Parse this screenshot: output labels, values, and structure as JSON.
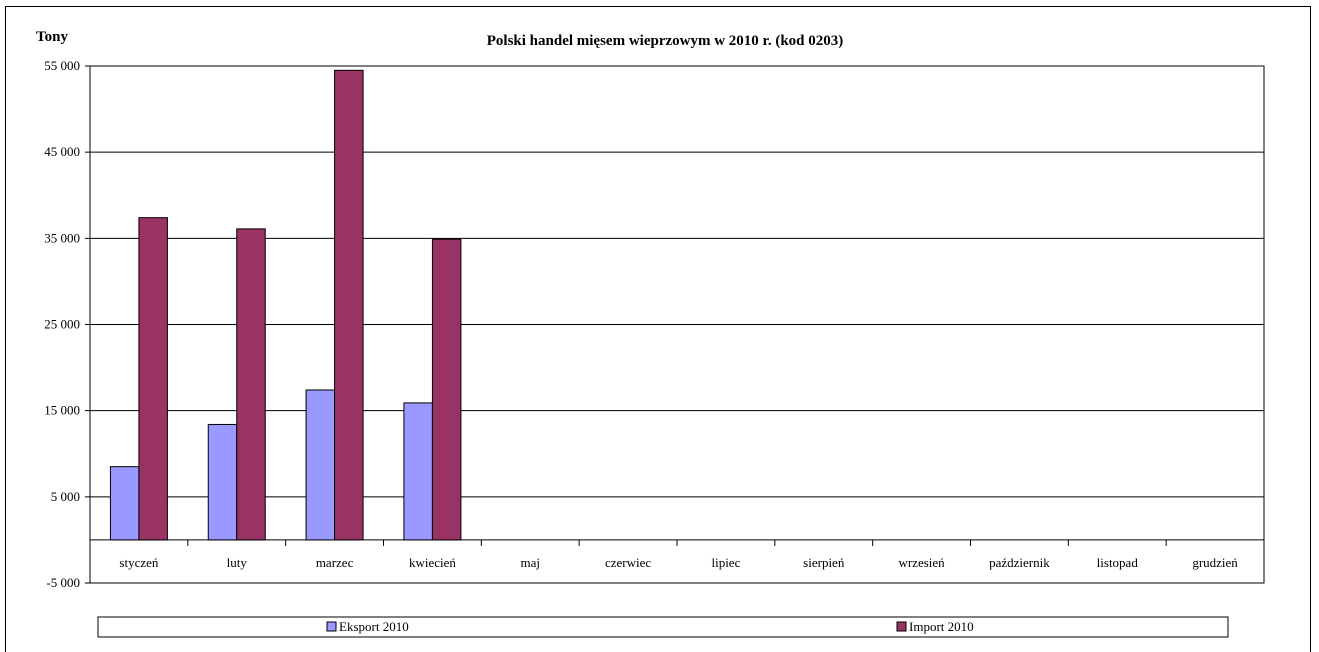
{
  "chart_data": {
    "type": "bar",
    "title": "Polski handel mięsem wieprzowym w 2010 r. (kod 0203)",
    "ylabel": "Tony",
    "xlabel": "",
    "categories": [
      "styczeń",
      "luty",
      "marzec",
      "kwiecień",
      "maj",
      "czerwiec",
      "lipiec",
      "sierpień",
      "wrzesień",
      "październik",
      "listopad",
      "grudzień"
    ],
    "series": [
      {
        "name": "Eksport 2010",
        "color": "#9999ff",
        "values": [
          8500,
          13400,
          17400,
          15900,
          null,
          null,
          null,
          null,
          null,
          null,
          null,
          null
        ]
      },
      {
        "name": "Import 2010",
        "color": "#993366",
        "values": [
          37400,
          36100,
          54500,
          34900,
          null,
          null,
          null,
          null,
          null,
          null,
          null,
          null
        ]
      }
    ],
    "yticks": [
      -5000,
      5000,
      15000,
      25000,
      35000,
      45000,
      55000
    ],
    "ytick_labels": [
      "-5 000",
      "5 000",
      "15 000",
      "25 000",
      "35 000",
      "45 000",
      "55 000"
    ],
    "ylim": [
      -5000,
      55000
    ],
    "grid": true,
    "legend": "bottom"
  }
}
